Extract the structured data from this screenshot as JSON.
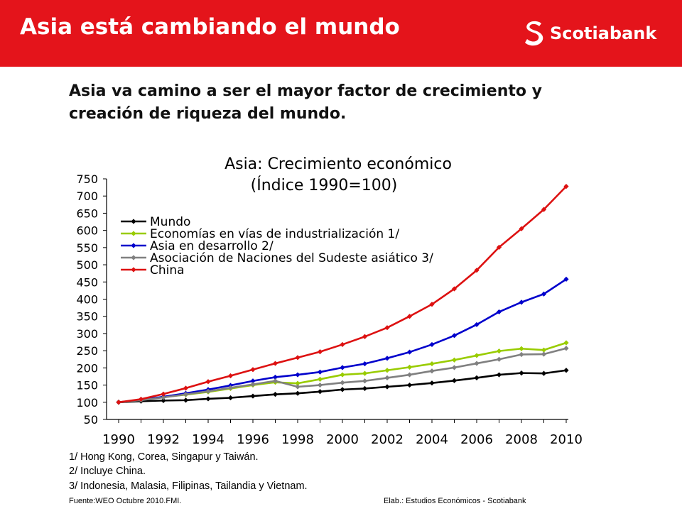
{
  "header": {
    "title": "Asia está cambiando el mundo",
    "brand": "Scotiabank",
    "logo_icon": "scotiabank-s-icon",
    "accent": "#e4141b"
  },
  "subtitle": {
    "line1": "Asia va camino a ser el mayor factor de crecimiento y",
    "line2": "creación de riqueza del mundo."
  },
  "chart_data": {
    "type": "line",
    "title": "Asia: Crecimiento económico",
    "subtitle": "(Índice 1990=100)",
    "xlabel": "",
    "ylabel": "",
    "x": [
      1990,
      1991,
      1992,
      1993,
      1994,
      1995,
      1996,
      1997,
      1998,
      1999,
      2000,
      2001,
      2002,
      2003,
      2004,
      2005,
      2006,
      2007,
      2008,
      2009,
      2010
    ],
    "xticks": [
      "1990",
      "1992",
      "1994",
      "1996",
      "1998",
      "2000",
      "2002",
      "2004",
      "2006",
      "2008",
      "2010"
    ],
    "xlim": [
      1990,
      2010
    ],
    "ylim": [
      50,
      750
    ],
    "yticks": [
      "50",
      "100",
      "150",
      "200",
      "250",
      "300",
      "350",
      "400",
      "450",
      "500",
      "550",
      "600",
      "650",
      "700",
      "750"
    ],
    "grid": false,
    "legend_position": "top-left",
    "series": [
      {
        "name": "Mundo",
        "color": "#000000",
        "values": [
          100,
          103,
          105,
          106,
          110,
          113,
          118,
          123,
          126,
          131,
          137,
          140,
          145,
          150,
          156,
          163,
          171,
          180,
          185,
          184,
          193
        ]
      },
      {
        "name": "Economías en vías de industrialización 1/",
        "color": "#99cc00",
        "values": [
          100,
          107,
          115,
          122,
          130,
          140,
          150,
          158,
          155,
          167,
          180,
          184,
          193,
          202,
          212,
          223,
          236,
          249,
          256,
          252,
          273
        ]
      },
      {
        "name": "Asia en desarrollo 2/",
        "color": "#0000cc",
        "values": [
          100,
          107,
          116,
          126,
          137,
          149,
          162,
          173,
          180,
          188,
          201,
          212,
          228,
          246,
          268,
          294,
          326,
          363,
          391,
          415,
          458
        ]
      },
      {
        "name": "Asociación de Naciones del Sudeste asiático 3/",
        "color": "#808080",
        "values": [
          100,
          106,
          114,
          123,
          132,
          142,
          152,
          162,
          145,
          150,
          157,
          162,
          171,
          180,
          191,
          201,
          213,
          225,
          239,
          240,
          257
        ]
      },
      {
        "name": "China",
        "color": "#dd1111",
        "values": [
          100,
          109,
          124,
          141,
          160,
          177,
          195,
          213,
          230,
          247,
          268,
          291,
          317,
          350,
          385,
          430,
          484,
          551,
          605,
          661,
          728
        ]
      }
    ]
  },
  "notes": [
    "1/ Hong Kong, Corea, Singapur y Taiwán.",
    "2/ Incluye China.",
    "3/ Indonesia, Malasia, Filipinas, Tailandia y Vietnam."
  ],
  "source": {
    "left": "Fuente:WEO Octubre 2010.FMI.",
    "right": "Elab.: Estudios Económicos - Scotiabank"
  }
}
